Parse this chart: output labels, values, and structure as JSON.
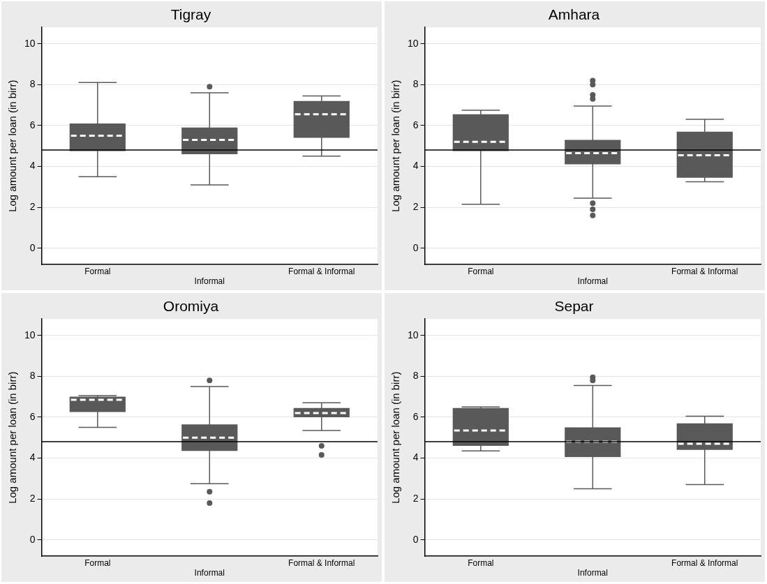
{
  "chart_data": [
    {
      "type": "box",
      "title": "Tigray",
      "ylabel": "Log amount per loan (in birr)",
      "categories": [
        "Formal",
        "Informal",
        "Formal & Informal"
      ],
      "ylim": [
        -0.8,
        10.8
      ],
      "yticks": [
        0,
        2,
        4,
        6,
        8,
        10
      ],
      "grid": "y",
      "ref_lines": [
        {
          "axis": "y",
          "value": 4.8,
          "color": "#000000"
        }
      ],
      "series": [
        {
          "color": "#595959",
          "boxes": [
            {
              "low": 3.5,
              "q1": 4.75,
              "median": 5.5,
              "q3": 6.1,
              "high": 8.1
            },
            {
              "low": 3.1,
              "q1": 4.6,
              "median": 5.3,
              "q3": 5.9,
              "high": 7.6,
              "outliers": [
                7.9
              ]
            },
            {
              "low": 4.5,
              "q1": 5.4,
              "median": 6.55,
              "q3": 7.2,
              "high": 7.45
            }
          ]
        }
      ]
    },
    {
      "type": "box",
      "title": "Amhara",
      "ylabel": "Log amount per loan (in birr)",
      "categories": [
        "Formal",
        "Informal",
        "Formal & Informal"
      ],
      "ylim": [
        -0.8,
        10.8
      ],
      "yticks": [
        0,
        2,
        4,
        6,
        8,
        10
      ],
      "grid": "y",
      "ref_lines": [
        {
          "axis": "y",
          "value": 4.8,
          "color": "#000000"
        }
      ],
      "series": [
        {
          "color": "#595959",
          "boxes": [
            {
              "low": 2.15,
              "q1": 4.75,
              "median": 5.2,
              "q3": 6.55,
              "high": 6.75
            },
            {
              "low": 2.45,
              "q1": 4.1,
              "median": 4.65,
              "q3": 5.3,
              "high": 6.95,
              "outliers": [
                8.2,
                8.0,
                7.5,
                7.3,
                2.2,
                1.9,
                1.6
              ]
            },
            {
              "low": 3.25,
              "q1": 3.45,
              "median": 4.55,
              "q3": 5.7,
              "high": 6.3
            }
          ]
        }
      ]
    },
    {
      "type": "box",
      "title": "Oromiya",
      "ylabel": "Log amount per loan (in birr)",
      "categories": [
        "Formal",
        "Informal",
        "Formal & Informal"
      ],
      "ylim": [
        -0.8,
        10.8
      ],
      "yticks": [
        0,
        2,
        4,
        6,
        8,
        10
      ],
      "grid": "y",
      "ref_lines": [
        {
          "axis": "y",
          "value": 4.8,
          "color": "#000000"
        }
      ],
      "series": [
        {
          "color": "#595959",
          "boxes": [
            {
              "low": 5.5,
              "q1": 6.25,
              "median": 6.85,
              "q3": 7.0,
              "high": 7.05
            },
            {
              "low": 2.75,
              "q1": 4.35,
              "median": 5.0,
              "q3": 5.65,
              "high": 7.5,
              "outliers": [
                7.8,
                2.35,
                1.8
              ]
            },
            {
              "low": 5.35,
              "q1": 6.0,
              "median": 6.2,
              "q3": 6.45,
              "high": 6.7,
              "outliers": [
                4.6,
                4.15
              ]
            }
          ]
        }
      ]
    },
    {
      "type": "box",
      "title": "Separ",
      "ylabel": "Log amount per loan (in birr)",
      "categories": [
        "Formal",
        "Informal",
        "Formal & Informal"
      ],
      "ylim": [
        -0.8,
        10.8
      ],
      "yticks": [
        0,
        2,
        4,
        6,
        8,
        10
      ],
      "grid": "y",
      "ref_lines": [
        {
          "axis": "y",
          "value": 4.8,
          "color": "#000000"
        }
      ],
      "series": [
        {
          "color": "#595959",
          "boxes": [
            {
              "low": 4.35,
              "q1": 4.6,
              "median": 5.35,
              "q3": 6.45,
              "high": 6.5
            },
            {
              "low": 2.5,
              "q1": 4.05,
              "median": 4.8,
              "q3": 5.5,
              "high": 7.55,
              "outliers": [
                7.95,
                7.8
              ]
            },
            {
              "low": 2.7,
              "q1": 4.4,
              "median": 4.7,
              "q3": 5.7,
              "high": 6.05
            }
          ]
        }
      ]
    }
  ]
}
